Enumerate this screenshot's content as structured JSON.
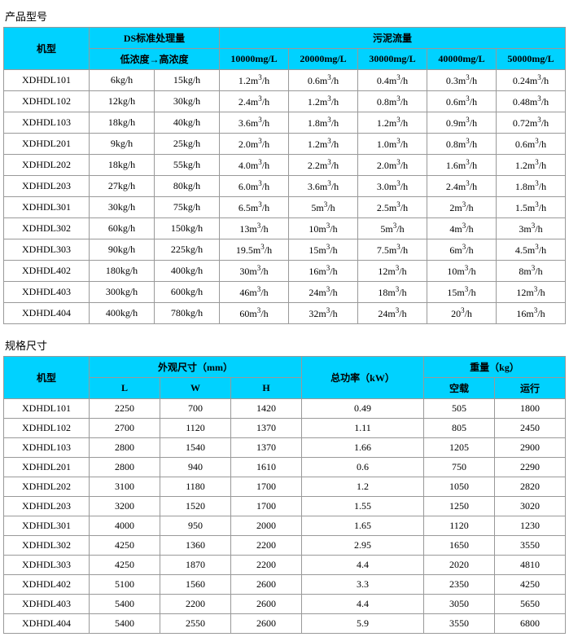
{
  "table1": {
    "title": "产品型号",
    "headers": {
      "model": "机型",
      "ds_group": "DS标准处理量",
      "ds_sub": "低浓度→高浓度",
      "flow_group": "污泥流量",
      "flow_cols": [
        "10000mg/L",
        "20000mg/L",
        "30000mg/L",
        "40000mg/L",
        "50000mg/L"
      ]
    },
    "rows": [
      {
        "m": "XDHDL101",
        "low": "6kg/h",
        "high": "15kg/h",
        "f": [
          "1.2m³/h",
          "0.6m³/h",
          "0.4m³/h",
          "0.3m³/h",
          "0.24m³/h"
        ]
      },
      {
        "m": "XDHDL102",
        "low": "12kg/h",
        "high": "30kg/h",
        "f": [
          "2.4m³/h",
          "1.2m³/h",
          "0.8m³/h",
          "0.6m³/h",
          "0.48m³/h"
        ]
      },
      {
        "m": "XDHDL103",
        "low": "18kg/h",
        "high": "40kg/h",
        "f": [
          "3.6m³/h",
          "1.8m³/h",
          "1.2m³/h",
          "0.9m³/h",
          "0.72m³/h"
        ]
      },
      {
        "m": "XDHDL201",
        "low": "9kg/h",
        "high": "25kg/h",
        "f": [
          "2.0m³/h",
          "1.2m³/h",
          "1.0m³/h",
          "0.8m³/h",
          "0.6m³/h"
        ]
      },
      {
        "m": "XDHDL202",
        "low": "18kg/h",
        "high": "55kg/h",
        "f": [
          "4.0m³/h",
          "2.2m³/h",
          "2.0m³/h",
          "1.6m³/h",
          "1.2m³/h"
        ]
      },
      {
        "m": "XDHDL203",
        "low": "27kg/h",
        "high": "80kg/h",
        "f": [
          "6.0m³/h",
          "3.6m³/h",
          "3.0m³/h",
          "2.4m³/h",
          "1.8m³/h"
        ]
      },
      {
        "m": "XDHDL301",
        "low": "30kg/h",
        "high": "75kg/h",
        "f": [
          "6.5m³/h",
          "5m³/h",
          "2.5m³/h",
          "2m³/h",
          "1.5m³/h"
        ]
      },
      {
        "m": "XDHDL302",
        "low": "60kg/h",
        "high": "150kg/h",
        "f": [
          "13m³/h",
          "10m³/h",
          "5m³/h",
          "4m³/h",
          "3m³/h"
        ]
      },
      {
        "m": "XDHDL303",
        "low": "90kg/h",
        "high": "225kg/h",
        "f": [
          "19.5m³/h",
          "15m³/h",
          "7.5m³/h",
          "6m³/h",
          "4.5m³/h"
        ]
      },
      {
        "m": "XDHDL402",
        "low": "180kg/h",
        "high": "400kg/h",
        "f": [
          "30m³/h",
          "16m³/h",
          "12m³/h",
          "10m³/h",
          "8m³/h"
        ]
      },
      {
        "m": "XDHDL403",
        "low": "300kg/h",
        "high": "600kg/h",
        "f": [
          "46m³/h",
          "24m³/h",
          "18m³/h",
          "15m³/h",
          "12m³/h"
        ]
      },
      {
        "m": "XDHDL404",
        "low": "400kg/h",
        "high": "780kg/h",
        "f": [
          "60m³/h",
          "32m³/h",
          "24m³/h",
          "20³/h",
          "16m³/h"
        ]
      }
    ]
  },
  "table2": {
    "title": "规格尺寸",
    "headers": {
      "model": "机型",
      "dim_group": "外观尺寸（mm）",
      "dim_cols": [
        "L",
        "W",
        "H"
      ],
      "power": "总功率（kW）",
      "weight_group": "重量（kg）",
      "weight_cols": [
        "空载",
        "运行"
      ]
    },
    "rows": [
      {
        "m": "XDHDL101",
        "d": [
          "2250",
          "700",
          "1420"
        ],
        "p": "0.49",
        "w": [
          "505",
          "1800"
        ]
      },
      {
        "m": "XDHDL102",
        "d": [
          "2700",
          "1120",
          "1370"
        ],
        "p": "1.11",
        "w": [
          "805",
          "2450"
        ]
      },
      {
        "m": "XDHDL103",
        "d": [
          "2800",
          "1540",
          "1370"
        ],
        "p": "1.66",
        "w": [
          "1205",
          "2900"
        ]
      },
      {
        "m": "XDHDL201",
        "d": [
          "2800",
          "940",
          "1610"
        ],
        "p": "0.6",
        "w": [
          "750",
          "2290"
        ]
      },
      {
        "m": "XDHDL202",
        "d": [
          "3100",
          "1180",
          "1700"
        ],
        "p": "1.2",
        "w": [
          "1050",
          "2820"
        ]
      },
      {
        "m": "XDHDL203",
        "d": [
          "3200",
          "1520",
          "1700"
        ],
        "p": "1.55",
        "w": [
          "1250",
          "3020"
        ]
      },
      {
        "m": "XDHDL301",
        "d": [
          "4000",
          "950",
          "2000"
        ],
        "p": "1.65",
        "w": [
          "1120",
          "1230"
        ]
      },
      {
        "m": "XDHDL302",
        "d": [
          "4250",
          "1360",
          "2200"
        ],
        "p": "2.95",
        "w": [
          "1650",
          "3550"
        ]
      },
      {
        "m": "XDHDL303",
        "d": [
          "4250",
          "1870",
          "2200"
        ],
        "p": "4.4",
        "w": [
          "2020",
          "4810"
        ]
      },
      {
        "m": "XDHDL402",
        "d": [
          "5100",
          "1560",
          "2600"
        ],
        "p": "3.3",
        "w": [
          "2350",
          "4250"
        ]
      },
      {
        "m": "XDHDL403",
        "d": [
          "5400",
          "2200",
          "2600"
        ],
        "p": "4.4",
        "w": [
          "3050",
          "5650"
        ]
      },
      {
        "m": "XDHDL404",
        "d": [
          "5400",
          "2550",
          "2600"
        ],
        "p": "5.9",
        "w": [
          "3550",
          "6800"
        ]
      }
    ]
  },
  "colors": {
    "header_bg": "#00d2ff",
    "border": "#999999",
    "text": "#000000",
    "bg": "#ffffff"
  }
}
